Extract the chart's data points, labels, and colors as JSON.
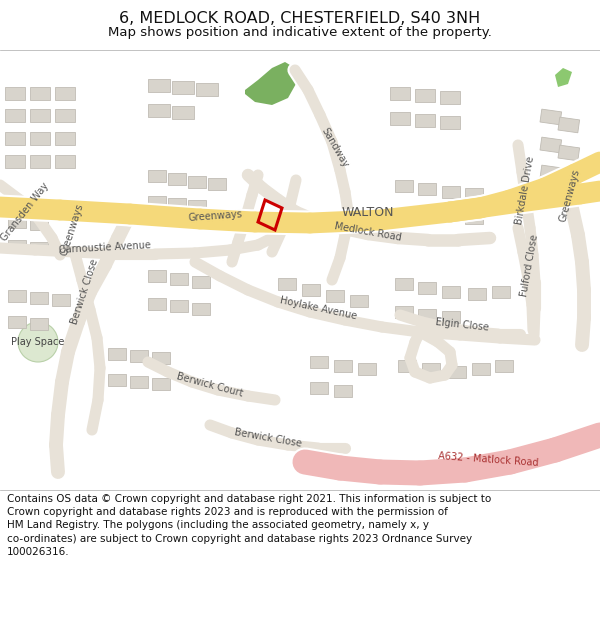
{
  "title_line1": "6, MEDLOCK ROAD, CHESTERFIELD, S40 3NH",
  "title_line2": "Map shows position and indicative extent of the property.",
  "footer_text": "Contains OS data © Crown copyright and database right 2021. This information is subject to Crown copyright and database rights 2023 and is reproduced with the permission of HM Land Registry. The polygons (including the associated geometry, namely x, y co-ordinates) are subject to Crown copyright and database rights 2023 Ordnance Survey 100026316.",
  "map_bg": "#f0ece5",
  "major_road_color": "#f5d97a",
  "a_road_color": "#f0b8b8",
  "building_color": "#d8d4cc",
  "building_edge": "#c0bcb4",
  "green_area1": "#7ab060",
  "green_area2": "#8cc870",
  "plot_color": "#cc0000",
  "white_bg": "#ffffff",
  "road_fill": "#e8e2d8",
  "road_outline": "#ffffff",
  "title_fontsize": 11.5,
  "subtitle_fontsize": 9.5,
  "footer_fontsize": 7.5,
  "label_color": "#555555",
  "walton_label_size": 8.5
}
